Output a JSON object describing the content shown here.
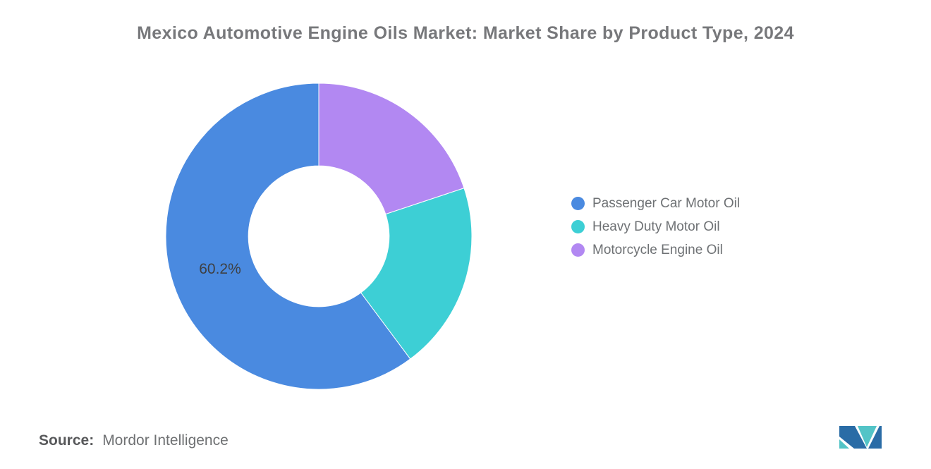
{
  "header": {
    "title": "Mexico Automotive Engine Oils Market: Market Share by Product Type, 2024"
  },
  "chart_data": {
    "type": "pie",
    "subtype": "donut",
    "title": "Mexico Automotive Engine Oils Market: Market Share by Product Type, 2024",
    "direction": "counterclockwise",
    "start_angle": "12-o-clock",
    "inner_radius_ratio": 0.46,
    "legend_position": "right",
    "grid": false,
    "segments": [
      {
        "label": "Passenger Car Motor Oil",
        "value": 60.2,
        "display_label": "60.2%",
        "color": "#4a8ae0"
      },
      {
        "label": "Heavy Duty Motor Oil",
        "value": 19.9,
        "display_label": "",
        "color": "#3dcfd5"
      },
      {
        "label": "Motorcycle Engine Oil",
        "value": 19.9,
        "display_label": "",
        "color": "#b288f2"
      }
    ]
  },
  "footer": {
    "source_label": "Source:",
    "source_value": "Mordor Intelligence"
  },
  "brand": {
    "logo": "mordor-intelligence-logo",
    "logo_blue": "#2a6ca6",
    "logo_teal": "#53c4c7"
  }
}
